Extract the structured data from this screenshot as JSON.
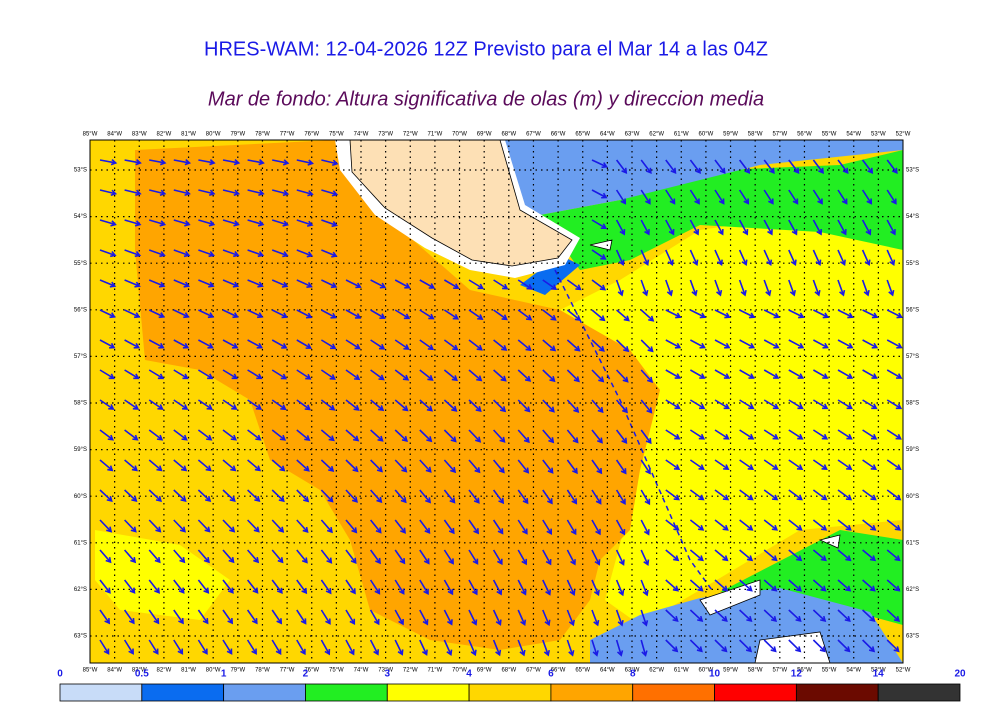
{
  "header": {
    "title": "HRES-WAM: 12-04-2026 12Z Previsto para el Mar 14 a las 04Z",
    "subtitle": "Mar de fondo: Altura significativa de olas (m) y direccion media"
  },
  "map": {
    "lon_labels": [
      "85°W",
      "84°W",
      "83°W",
      "82°W",
      "81°W",
      "80°W",
      "79°W",
      "78°W",
      "77°W",
      "76°W",
      "75°W",
      "74°W",
      "73°W",
      "72°W",
      "71°W",
      "70°W",
      "69°W",
      "68°W",
      "67°W",
      "66°W",
      "65°W",
      "64°W",
      "63°W",
      "62°W",
      "61°W",
      "60°W",
      "59°W",
      "58°W",
      "57°W",
      "56°W",
      "55°W",
      "54°W",
      "53°W",
      "52°W"
    ],
    "lat_labels": [
      "53°S",
      "54°S",
      "55°S",
      "56°S",
      "57°S",
      "58°S",
      "59°S",
      "60°S",
      "61°S",
      "62°S",
      "63°S"
    ]
  },
  "colorbar": {
    "labels": [
      0,
      0.5,
      1,
      2,
      3,
      4,
      6,
      8,
      10,
      12,
      14,
      20
    ],
    "colors": [
      "#c8dcf8",
      "#0a6cf0",
      "#6a9ef0",
      "#22ee22",
      "#ffff00",
      "#ffd700",
      "#ffa500",
      "#ff7000",
      "#ff0000",
      "#6b0a00",
      "#333333"
    ]
  }
}
